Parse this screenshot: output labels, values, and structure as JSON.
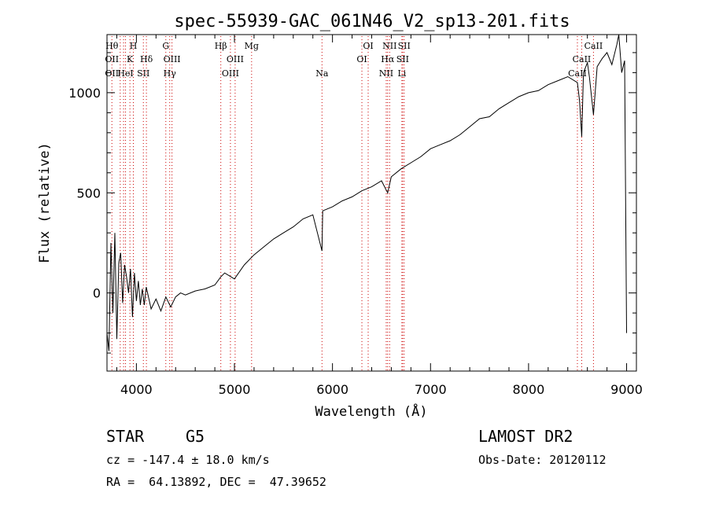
{
  "chart_data": {
    "type": "line",
    "title": "spec-55939-GAC_061N46_V2_sp13-201.fits",
    "xlabel": "Wavelength (Å)",
    "ylabel": "Flux (relative)",
    "xlim": [
      3700,
      9100
    ],
    "ylim": [
      -390,
      1290
    ],
    "xticks": [
      4000,
      5000,
      6000,
      7000,
      8000,
      9000
    ],
    "yticks": [
      0,
      500,
      1000
    ],
    "grid": false,
    "series": [
      {
        "x": [
          3700,
          3720,
          3740,
          3760,
          3780,
          3800,
          3820,
          3840,
          3860,
          3880,
          3900,
          3920,
          3940,
          3960,
          3980,
          4000,
          4020,
          4040,
          4060,
          4080,
          4100,
          4150,
          4200,
          4250,
          4300,
          4350,
          4400,
          4450,
          4500,
          4600,
          4700,
          4800,
          4860,
          4900,
          5000,
          5100,
          5200,
          5300,
          5400,
          5500,
          5600,
          5700,
          5800,
          5893,
          5900,
          6000,
          6100,
          6200,
          6300,
          6400,
          6500,
          6563,
          6600,
          6700,
          6800,
          6900,
          7000,
          7100,
          7200,
          7300,
          7400,
          7500,
          7600,
          7700,
          7800,
          7900,
          8000,
          8100,
          8200,
          8300,
          8400,
          8498,
          8520,
          8542,
          8560,
          8600,
          8620,
          8662,
          8700,
          8750,
          8800,
          8850,
          8900,
          8920,
          8950,
          8980,
          9000
        ],
        "y": [
          -200,
          -290,
          250,
          -100,
          300,
          -230,
          150,
          200,
          -50,
          140,
          80,
          0,
          120,
          -120,
          100,
          -40,
          60,
          -60,
          20,
          -60,
          30,
          -80,
          -30,
          -90,
          -20,
          -70,
          -20,
          0,
          -10,
          10,
          20,
          40,
          80,
          100,
          70,
          140,
          190,
          230,
          270,
          300,
          330,
          370,
          390,
          210,
          410,
          430,
          460,
          480,
          510,
          530,
          560,
          500,
          580,
          620,
          650,
          680,
          720,
          740,
          760,
          790,
          830,
          870,
          880,
          920,
          950,
          980,
          1000,
          1010,
          1040,
          1060,
          1080,
          1050,
          960,
          780,
          1100,
          1150,
          1080,
          890,
          1130,
          1170,
          1200,
          1140,
          1240,
          1290,
          1100,
          1160,
          -200
        ]
      }
    ],
    "lines": [
      {
        "x": 3750,
        "labels": [
          "Hθ",
          "OII",
          "OII"
        ]
      },
      {
        "x": 3835
      },
      {
        "x": 3869
      },
      {
        "x": 3889,
        "labels": [
          "",
          "",
          "HeI"
        ]
      },
      {
        "x": 3934,
        "labels": [
          "",
          "K",
          ""
        ]
      },
      {
        "x": 3969,
        "labels": [
          "H",
          "",
          ""
        ]
      },
      {
        "x": 4071,
        "labels": [
          "",
          "",
          "SII"
        ]
      },
      {
        "x": 4102,
        "labels": [
          "",
          "Hδ",
          ""
        ]
      },
      {
        "x": 4300,
        "labels": [
          "G",
          "",
          ""
        ]
      },
      {
        "x": 4340,
        "labels": [
          "",
          "",
          "Hγ"
        ]
      },
      {
        "x": 4363,
        "labels": [
          "",
          "OIII",
          ""
        ]
      },
      {
        "x": 4861,
        "labels": [
          "Hβ",
          "",
          ""
        ]
      },
      {
        "x": 4959,
        "labels": [
          "",
          "",
          "OIII"
        ]
      },
      {
        "x": 5007,
        "labels": [
          "",
          "OIII",
          ""
        ]
      },
      {
        "x": 5175,
        "labels": [
          "Mg",
          "",
          ""
        ]
      },
      {
        "x": 5893,
        "labels": [
          "",
          "",
          "Na"
        ]
      },
      {
        "x": 6300,
        "labels": [
          "",
          "OI",
          ""
        ]
      },
      {
        "x": 6364,
        "labels": [
          "OI",
          "",
          ""
        ]
      },
      {
        "x": 6548,
        "labels": [
          "",
          "",
          "NII"
        ]
      },
      {
        "x": 6563,
        "labels": [
          "",
          "Hα",
          ""
        ]
      },
      {
        "x": 6583,
        "labels": [
          "NII",
          "",
          ""
        ]
      },
      {
        "x": 6708,
        "labels": [
          "",
          "",
          "Li"
        ]
      },
      {
        "x": 6716,
        "labels": [
          "",
          "SII",
          ""
        ]
      },
      {
        "x": 6731,
        "labels": [
          "SII",
          "",
          ""
        ]
      },
      {
        "x": 8498,
        "labels": [
          "",
          "",
          "CaII"
        ]
      },
      {
        "x": 8542,
        "labels": [
          "",
          "CaII",
          ""
        ]
      },
      {
        "x": 8662,
        "labels": [
          "CaII",
          "",
          ""
        ]
      }
    ],
    "line_color": "#cc0000"
  },
  "info": {
    "object_class": "STAR",
    "subclass": "G5",
    "survey": "LAMOST DR2",
    "redshift": "cz = -147.4 ± 18.0 km/s",
    "obs_date": "Obs-Date: 20120112",
    "coords": "RA =  64.13892, DEC =  47.39652"
  }
}
